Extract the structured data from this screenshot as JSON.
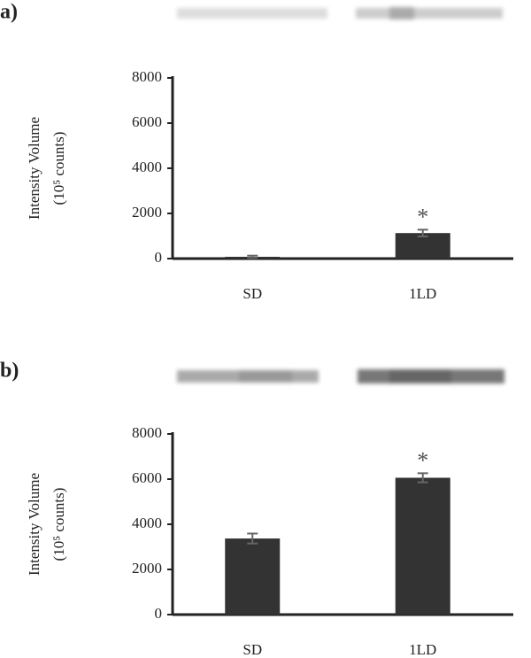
{
  "chart_data": [
    {
      "type": "bar",
      "panel_label": "a)",
      "ylabel": [
        "Intensity Volume",
        "(10⁵ counts)"
      ],
      "categories": [
        "SD",
        "1LD"
      ],
      "series": [
        {
          "color": "#333333",
          "values": [
            80,
            1130
          ],
          "errors": [
            50,
            150
          ]
        }
      ],
      "annotations": [
        null,
        "*"
      ],
      "ylim": [
        0,
        8000
      ],
      "yticks": [
        0,
        2000,
        4000,
        6000,
        8000
      ]
    },
    {
      "type": "bar",
      "panel_label": "b)",
      "ylabel": [
        "Intensity Volume",
        "(10⁵ counts)"
      ],
      "categories": [
        "SD",
        "1LD"
      ],
      "series": [
        {
          "color": "#333333",
          "values": [
            3370,
            6060
          ],
          "errors": [
            220,
            200
          ]
        }
      ],
      "annotations": [
        null,
        "*"
      ],
      "ylim": [
        0,
        8000
      ],
      "yticks": [
        0,
        2000,
        4000,
        6000,
        8000
      ]
    }
  ]
}
